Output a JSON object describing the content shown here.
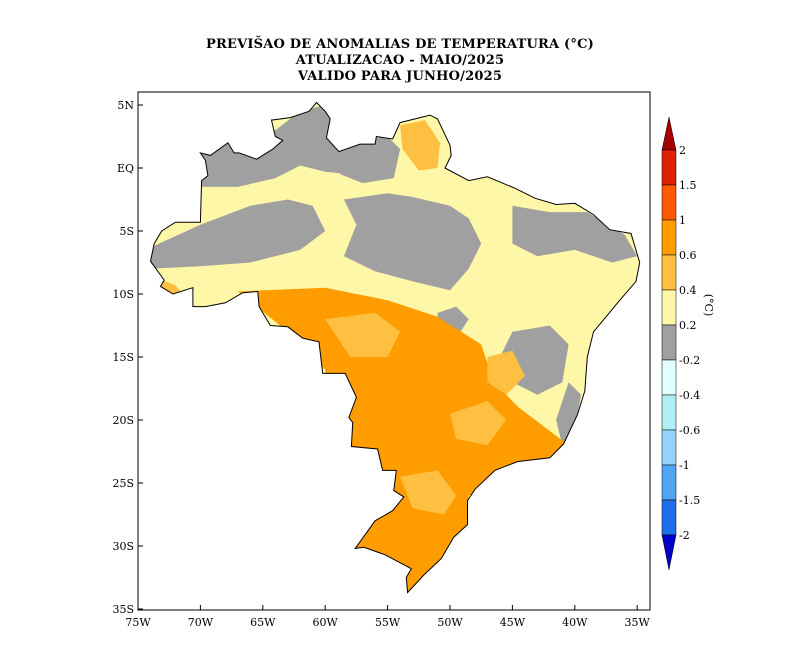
{
  "title": {
    "line1": "PREVIŠAO DE ANOMALIAS DE TEMPERATURA (°C)",
    "line2": "ATUALIZACAO - MAIO/2025",
    "line3": "VALIDO PARA JUNHO/2025"
  },
  "map": {
    "region": "Brazil",
    "lon_range": [
      -75,
      -34
    ],
    "lat_range": [
      -35,
      6
    ],
    "lon_ticks": [
      "75W",
      "70W",
      "65W",
      "60W",
      "55W",
      "50W",
      "45W",
      "40W",
      "35W"
    ],
    "lat_ticks": [
      "5N",
      "EQ",
      "5S",
      "10S",
      "15S",
      "20S",
      "25S",
      "30S",
      "35S"
    ]
  },
  "colorbar": {
    "unit_label": "(°C)",
    "labels": [
      "2",
      "1.5",
      "1",
      "0.6",
      "0.4",
      "0.2",
      "-0.2",
      "-0.4",
      "-0.6",
      "-1",
      "-1.5",
      "-2"
    ],
    "colors_top_to_bottom": [
      "#a50000",
      "#e01e00",
      "#ff5a00",
      "#ff9c00",
      "#ffbf40",
      "#fff7a8",
      "#a0a0a0",
      "#e0ffff",
      "#b0f0f5",
      "#96d2fa",
      "#50a5f5",
      "#1e6eeb",
      "#0000c8"
    ],
    "extend": "both"
  }
}
